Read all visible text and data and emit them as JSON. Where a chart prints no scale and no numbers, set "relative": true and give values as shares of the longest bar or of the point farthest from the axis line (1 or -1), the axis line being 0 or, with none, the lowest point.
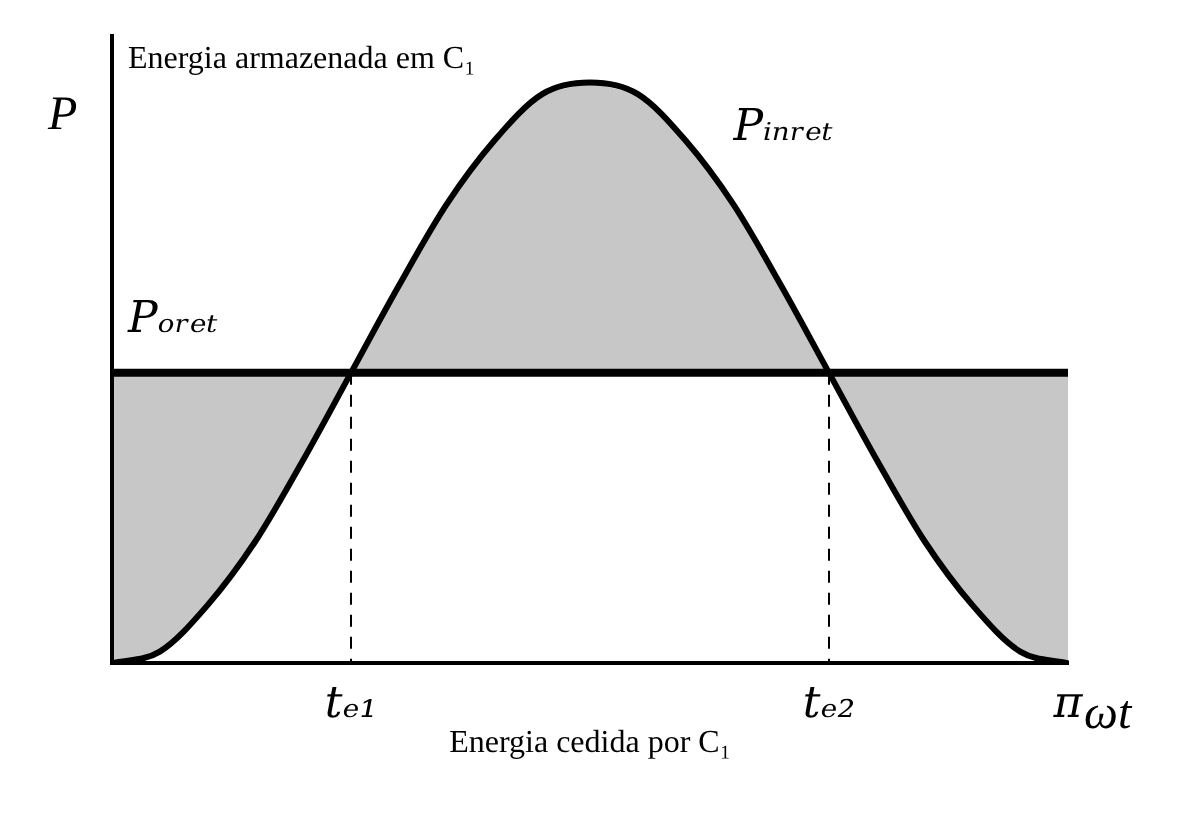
{
  "chart_data": {
    "type": "line",
    "relative": true,
    "xlabel": "ωt",
    "ylabel": "P",
    "categories": [
      null,
      null,
      null,
      null,
      null,
      "tₑ₁",
      null,
      null,
      null,
      null,
      null,
      null,
      null,
      null,
      null,
      "tₑ₂",
      null,
      null,
      null,
      null,
      "π"
    ],
    "series": [
      {
        "name": "Pᵢₙᵣₑₜ",
        "color": "#000000",
        "values": [
          0,
          0.02,
          0.1,
          0.21,
          0.35,
          0.5,
          0.65,
          0.79,
          0.9,
          0.98,
          1,
          0.98,
          0.9,
          0.79,
          0.65,
          0.5,
          0.35,
          0.21,
          0.1,
          0.02,
          0
        ]
      },
      {
        "name": "Pₒᵣₑₜ",
        "color": "#000000",
        "values": [
          0.5,
          0.5,
          0.5,
          0.5,
          0.5,
          0.5,
          0.5,
          0.5,
          0.5,
          0.5,
          0.5,
          0.5,
          0.5,
          0.5,
          0.5,
          0.5,
          0.5,
          0.5,
          0.5,
          0.5,
          0.5
        ],
        "lower": [
          0,
          0.02,
          0.1,
          0.21,
          0.35,
          0.5,
          0.5,
          0.5,
          0.5,
          0.5,
          0.5,
          0.5,
          0.5,
          0.5,
          0.5,
          0.5,
          0.35,
          0.21,
          0.1,
          0.02,
          0
        ],
        "upper": [
          0.5,
          0.5,
          0.5,
          0.5,
          0.5,
          0.5,
          0.65,
          0.79,
          0.9,
          0.98,
          1,
          0.98,
          0.9,
          0.79,
          0.65,
          0.5,
          0.5,
          0.5,
          0.5,
          0.5,
          0.5
        ]
      }
    ],
    "ref_lines": [
      {
        "axis": "x",
        "value": "tₑ₁",
        "line_style": "dashed"
      },
      {
        "axis": "x",
        "value": "tₑ₂",
        "line_style": "dashed"
      }
    ],
    "annotations": [
      "Energia armazenada em C₁",
      "Energia cedida por C₁"
    ],
    "legend": false,
    "grid": false,
    "marker": "none"
  }
}
